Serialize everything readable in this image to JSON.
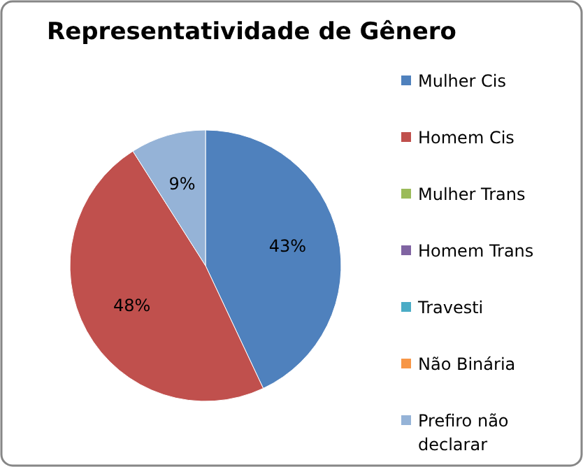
{
  "chart_data": {
    "type": "pie",
    "title": "Representatividade de Gênero",
    "categories": [
      "Mulher Cis",
      "Homem Cis",
      "Mulher Trans",
      "Homem Trans",
      "Travesti",
      "Não Binária",
      "Prefiro não declarar"
    ],
    "values": [
      43,
      48,
      0,
      0,
      0,
      0,
      9
    ],
    "colors": [
      "#4f81bd",
      "#c0504d",
      "#9bbb59",
      "#8064a2",
      "#4bacc6",
      "#f79646",
      "#95b3d7"
    ],
    "value_labels": [
      "43%",
      "48%",
      null,
      null,
      null,
      null,
      "9%"
    ],
    "legend": "right"
  }
}
